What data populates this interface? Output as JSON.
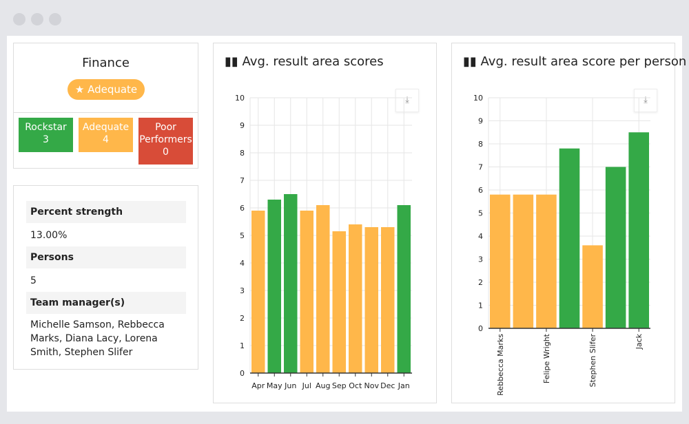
{
  "team": {
    "name": "Finance",
    "rating": "Adequate",
    "rating_icon": "star-icon"
  },
  "tiles": [
    {
      "label": "Rockstar",
      "count": "3",
      "color": "#34a947"
    },
    {
      "label": "Adequate",
      "count": "4",
      "color": "#ffb74a"
    },
    {
      "label": "Poor Performers",
      "count": "0",
      "color": "#d84c38"
    }
  ],
  "stats": [
    {
      "label": "Percent strength",
      "value": "13.00%"
    },
    {
      "label": "Persons",
      "value": "5"
    },
    {
      "label": "Team manager(s)",
      "value": "Michelle Samson, Rebbecca Marks, Diana Lacy, Lorena Smith, Stephen Slifer"
    }
  ],
  "chart_data": [
    {
      "type": "bar",
      "title": "Avg. result area scores",
      "ylim": [
        0,
        10
      ],
      "yticks": [
        0,
        1,
        2,
        3,
        4,
        5,
        6,
        7,
        8,
        9,
        10
      ],
      "grid": true,
      "categories": [
        "Apr",
        "May",
        "Jun",
        "Jul",
        "Aug",
        "Sep",
        "Oct",
        "Nov",
        "Dec",
        "Jan"
      ],
      "tick_labels": [
        "Apr",
        "Jun",
        "Aug",
        "Oct",
        "Dec"
      ],
      "values": [
        5.9,
        6.3,
        6.5,
        5.9,
        6.1,
        5.15,
        5.4,
        5.3,
        5.3,
        6.1
      ],
      "colors": [
        "#ffb74a",
        "#34a947",
        "#34a947",
        "#ffb74a",
        "#ffb74a",
        "#ffb74a",
        "#ffb74a",
        "#ffb74a",
        "#ffb74a",
        "#34a947"
      ]
    },
    {
      "type": "bar",
      "title": "Avg. result area score per person",
      "ylim": [
        0,
        10
      ],
      "yticks": [
        0,
        1,
        2,
        3,
        4,
        5,
        6,
        7,
        8,
        9,
        10
      ],
      "grid": true,
      "categories": [
        "Rebbecca Marks",
        "",
        "Felipe Wright",
        "",
        "Stephen Slifer",
        "",
        "Jack"
      ],
      "tick_labels": [
        "Rebbecca Marks",
        "Felipe Wright",
        "Stephen Slifer",
        "Jack"
      ],
      "values": [
        5.8,
        5.8,
        5.8,
        7.8,
        3.6,
        7.0,
        8.5
      ],
      "colors": [
        "#ffb74a",
        "#ffb74a",
        "#ffb74a",
        "#34a947",
        "#ffb74a",
        "#34a947",
        "#34a947"
      ]
    }
  ]
}
